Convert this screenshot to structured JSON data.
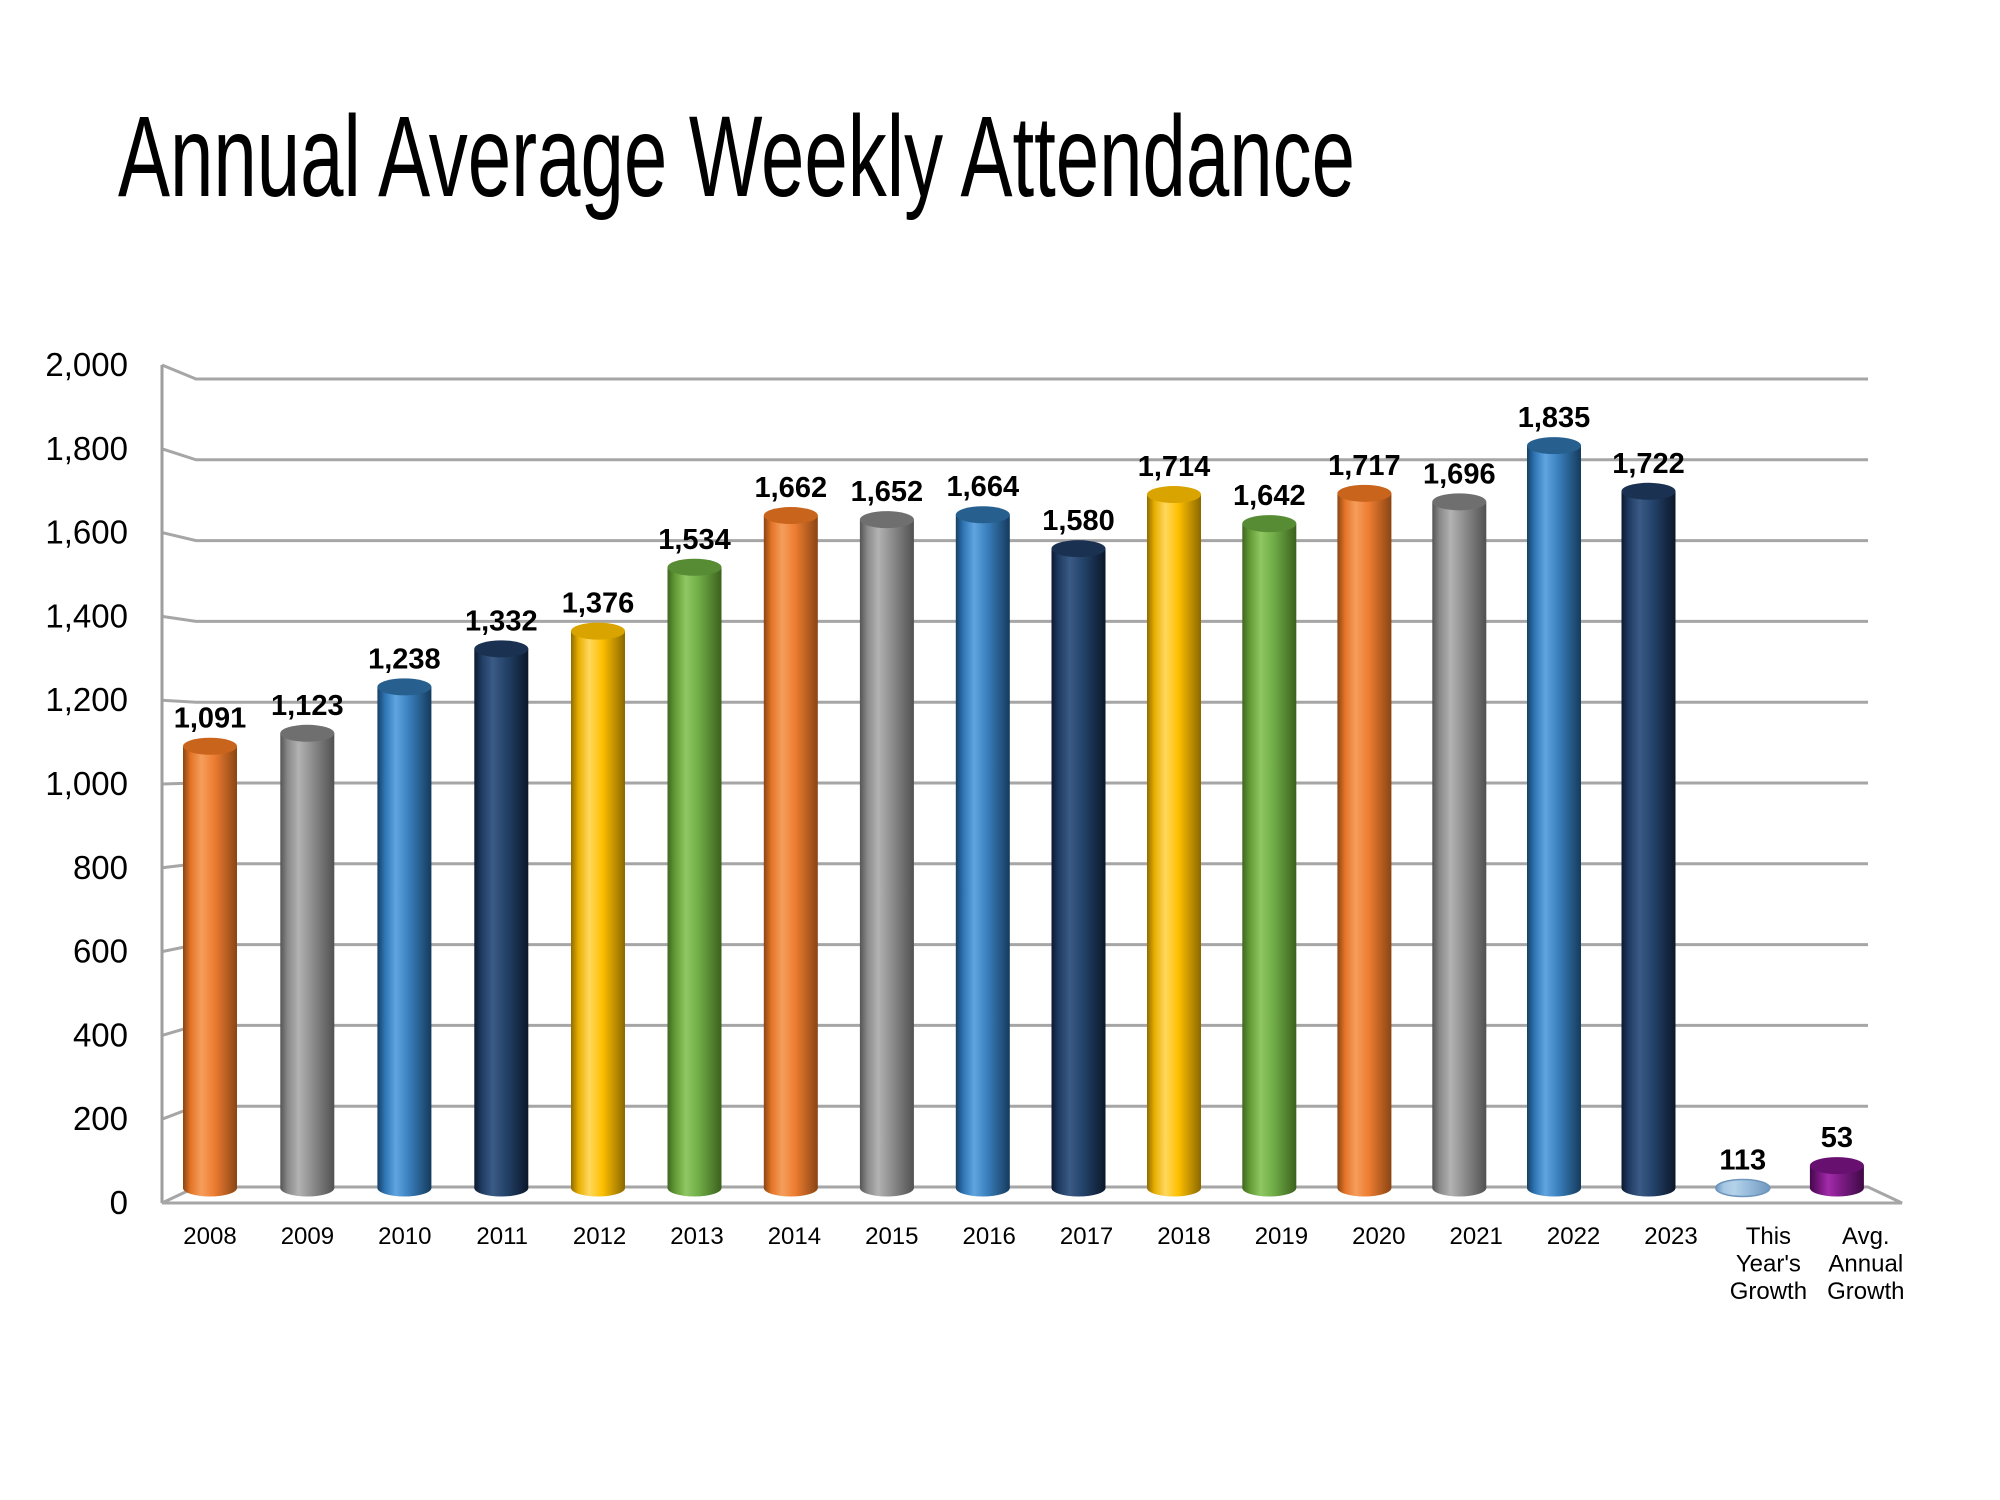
{
  "title": "Annual Average Weekly Attendance",
  "chart_data": {
    "type": "bar",
    "style": "3d-cylinder",
    "title": "Annual Average Weekly Attendance",
    "xlabel": "",
    "ylabel": "",
    "legend": "none",
    "grid": true,
    "ylim": [
      0,
      2000
    ],
    "ytick_step": 200,
    "ytick_labels": [
      "0",
      "200",
      "400",
      "600",
      "800",
      "1,000",
      "1,200",
      "1,400",
      "1,600",
      "1,800",
      "2,000"
    ],
    "categories": [
      "2008",
      "2009",
      "2010",
      "2011",
      "2012",
      "2013",
      "2014",
      "2015",
      "2016",
      "2017",
      "2018",
      "2019",
      "2020",
      "2021",
      "2022",
      "2023",
      "This Year's Growth",
      "Avg. Annual Growth"
    ],
    "values": [
      1091,
      1123,
      1238,
      1332,
      1376,
      1534,
      1662,
      1652,
      1664,
      1580,
      1714,
      1642,
      1717,
      1696,
      1835,
      1722,
      113,
      53
    ],
    "data_labels": [
      "1,091",
      "1,123",
      "1,238",
      "1,332",
      "1,376",
      "1,534",
      "1,662",
      "1,652",
      "1,664",
      "1,580",
      "1,714",
      "1,642",
      "1,717",
      "1,696",
      "1,835",
      "1,722",
      "113",
      "53"
    ],
    "bar_colors": [
      "orange",
      "gray",
      "blue",
      "navy",
      "yellow",
      "green",
      "orange",
      "gray",
      "blue",
      "navy",
      "yellow",
      "green",
      "orange",
      "gray",
      "blue",
      "navy",
      "lightblue",
      "purple"
    ],
    "data_label_colors": [
      "#000000",
      "#000000",
      "#000000",
      "#000000",
      "#000000",
      "#000000",
      "#000000",
      "#000000",
      "#000000",
      "#000000",
      "#000000",
      "#000000",
      "#000000",
      "#000000",
      "#000000",
      "#000000",
      "#FF0000",
      "#000000"
    ],
    "flat_disc_categories": [
      "This Year's Growth"
    ]
  },
  "palette": {
    "background": "#FFFFFF",
    "grid_color": "#A6A6A6",
    "axis_color": "#9E9E9E",
    "text_color": "#000000",
    "growth_label_color": "#FF0000",
    "cylinders": {
      "orange": {
        "stops": [
          "#8A4513",
          "#E37426",
          "#F59E5C",
          "#ED7D31",
          "#8A4513"
        ],
        "top": "#C8641C"
      },
      "gray": {
        "stops": [
          "#555555",
          "#8A8A8A",
          "#B2B2B2",
          "#8F8F8F",
          "#515151"
        ],
        "top": "#6F6F6F"
      },
      "blue": {
        "stops": [
          "#173F63",
          "#2E75B6",
          "#60A5E0",
          "#3A80BE",
          "#153A5C"
        ],
        "top": "#27608F"
      },
      "navy": {
        "stops": [
          "#0C1930",
          "#203C63",
          "#3A5B85",
          "#24436B",
          "#0B1729"
        ],
        "top": "#1B3152"
      },
      "yellow": {
        "stops": [
          "#8F6C00",
          "#E8AF00",
          "#FFD75E",
          "#FFC000",
          "#8A6800"
        ],
        "top": "#D9A300"
      },
      "green": {
        "stops": [
          "#3F671F",
          "#639A36",
          "#8FC763",
          "#70AD47",
          "#3B611D"
        ],
        "top": "#578B34"
      },
      "purple": {
        "stops": [
          "#43094A",
          "#6D1375",
          "#A32BAB",
          "#7D1C86",
          "#3E0845"
        ],
        "top": "#671070"
      },
      "lightblue": {
        "stops": [
          "#6F97BE",
          "#A5C6E4",
          "#B5D2EA",
          "#9BBEDD",
          "#6F97BE"
        ],
        "top": "#86ACD2"
      }
    }
  }
}
